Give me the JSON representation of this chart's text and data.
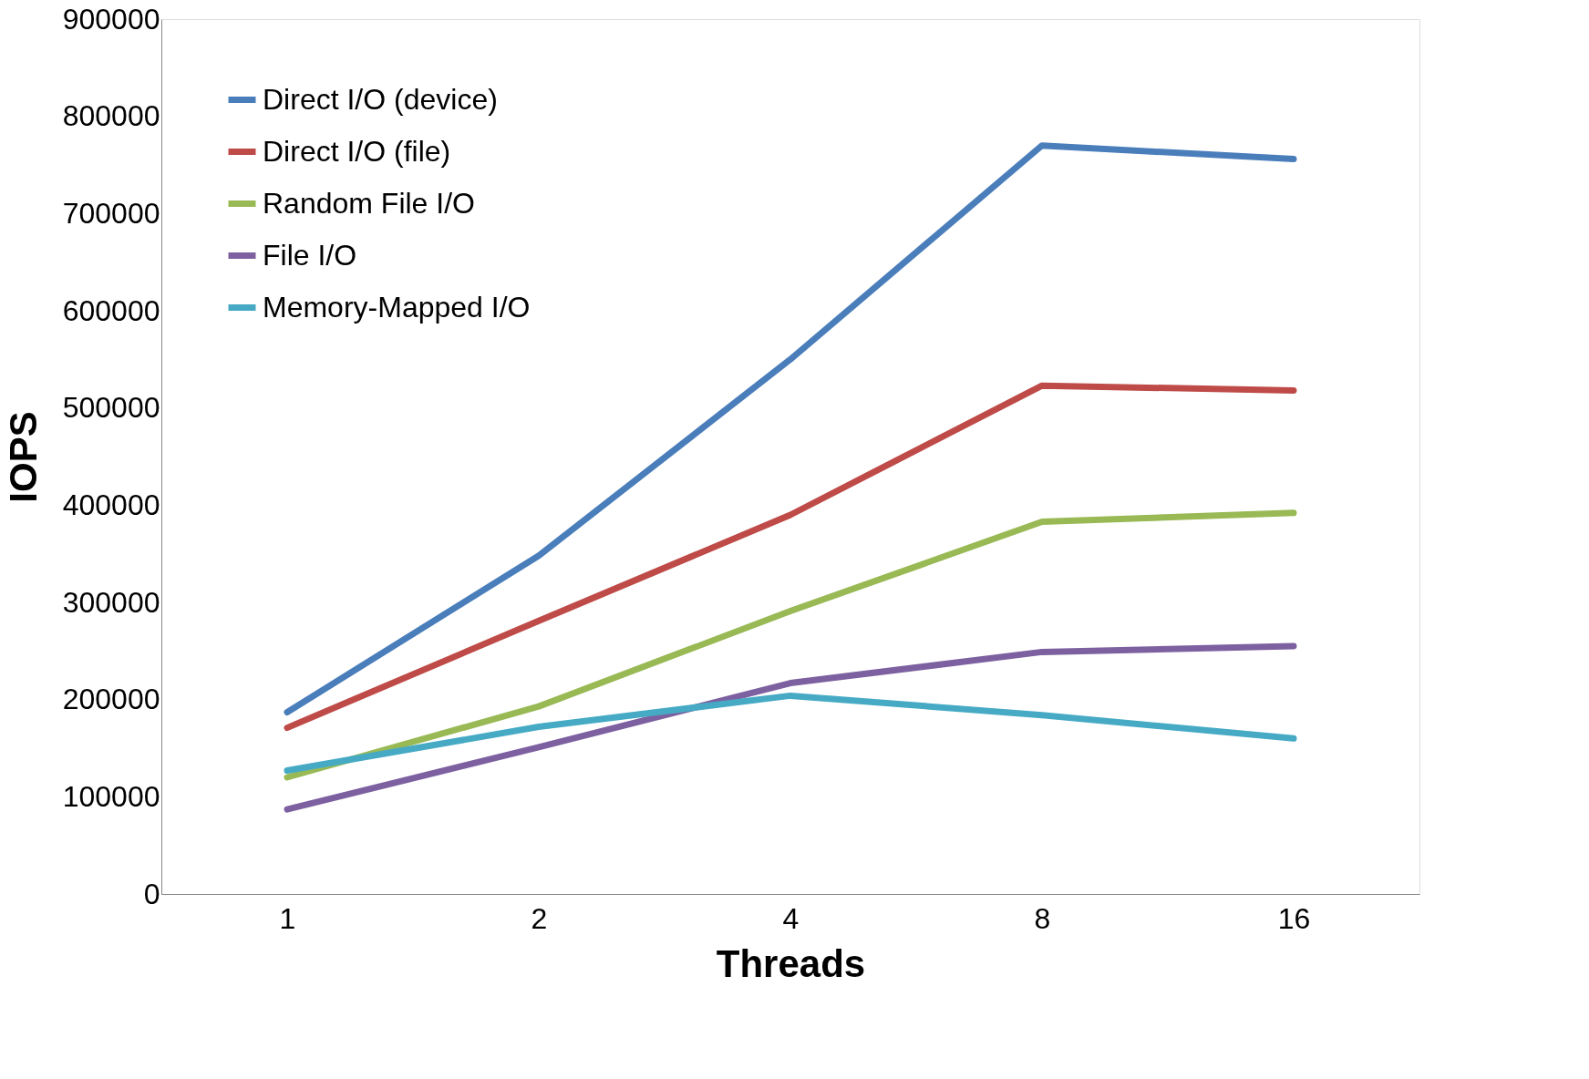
{
  "chart_data": {
    "type": "line",
    "xlabel": "Threads",
    "ylabel": "IOPS",
    "categories": [
      "1",
      "2",
      "4",
      "8",
      "16"
    ],
    "ylim": [
      0,
      900000
    ],
    "yticks": [
      0,
      100000,
      200000,
      300000,
      400000,
      500000,
      600000,
      700000,
      800000,
      900000
    ],
    "grid": false,
    "legend": "top left",
    "marker": "none",
    "line_style": "solid",
    "series": [
      {
        "name": "Direct I/O (device)",
        "color": "#4a7ebb",
        "values": [
          187000,
          348000,
          550000,
          770000,
          756000
        ]
      },
      {
        "name": "Direct I/O (file)",
        "color": "#be4b48",
        "values": [
          171000,
          281000,
          390000,
          523000,
          518000
        ]
      },
      {
        "name": "Random File I/O",
        "color": "#98b954",
        "values": [
          120000,
          193000,
          291000,
          383000,
          392000
        ]
      },
      {
        "name": "File I/O",
        "color": "#7d60a0",
        "values": [
          87000,
          151000,
          217000,
          249000,
          255000
        ]
      },
      {
        "name": "Memory-Mapped I/O",
        "color": "#46aac5",
        "values": [
          127000,
          172000,
          204000,
          184000,
          160000
        ]
      }
    ]
  }
}
